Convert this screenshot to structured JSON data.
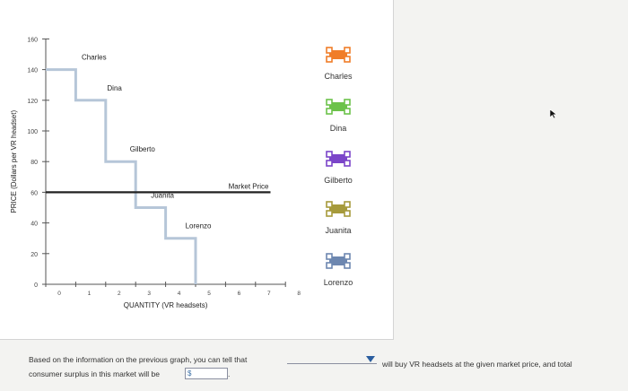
{
  "chart_data": {
    "type": "step-line",
    "ylabel": "PRICE (Dollars per VR headset)",
    "xlabel": "QUANTITY (VR headsets)",
    "xlim": [
      0,
      8
    ],
    "ylim": [
      0,
      160
    ],
    "x_ticks": [
      0,
      1,
      2,
      3,
      4,
      5,
      6,
      7,
      8
    ],
    "y_ticks": [
      0,
      20,
      40,
      60,
      80,
      100,
      120,
      140,
      160
    ],
    "demand_steps": [
      {
        "name": "Charles",
        "quantity_from": 0,
        "quantity_to": 1,
        "price": 140
      },
      {
        "name": "Dina",
        "quantity_from": 1,
        "quantity_to": 2,
        "price": 120
      },
      {
        "name": "Gilberto",
        "quantity_from": 2,
        "quantity_to": 3,
        "price": 80
      },
      {
        "name": "Juanita",
        "quantity_from": 3,
        "quantity_to": 4,
        "price": 50
      },
      {
        "name": "Lorenzo",
        "quantity_from": 4,
        "quantity_to": 5,
        "price": 30
      }
    ],
    "market_price": {
      "label": "Market Price",
      "value": 60
    },
    "grid": false
  },
  "legend": [
    {
      "label": "Charles",
      "color": "#f07d28",
      "icon": "orange-step-marker-icon"
    },
    {
      "label": "Dina",
      "color": "#6cc24a",
      "icon": "green-step-marker-icon"
    },
    {
      "label": "Gilberto",
      "color": "#7b45c9",
      "icon": "purple-step-marker-icon"
    },
    {
      "label": "Juanita",
      "color": "#a69a3b",
      "icon": "olive-step-marker-icon"
    },
    {
      "label": "Lorenzo",
      "color": "#6d87b0",
      "icon": "blue-step-marker-icon"
    }
  ],
  "question": {
    "line1": "Based on the information on the previous graph, you can tell that",
    "line2": "consumer surplus in this market will be",
    "after_dropdown": "will buy VR headsets at the given market price, and total",
    "currency": "$",
    "dropdown_value": "",
    "surplus_value": ""
  },
  "colors": {
    "demand_line": "#b6c6d8",
    "market_price_line": "#222222",
    "axis": "#555555"
  }
}
